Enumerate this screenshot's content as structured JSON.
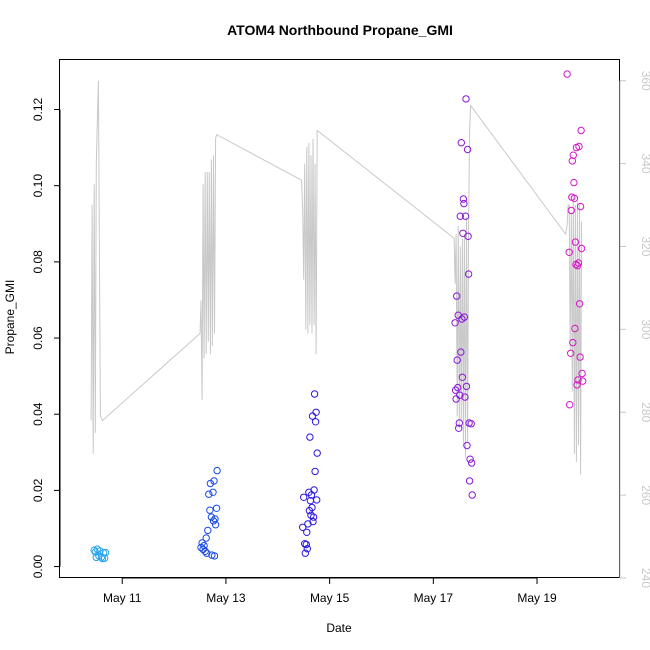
{
  "chart_data": {
    "type": "scatter",
    "title": "ATOM4 Northbound Propane_GMI",
    "xlabel": "Date",
    "ylabel": "Propane_GMI",
    "x_unit": "day of May",
    "xlim": [
      9.8,
      20.6
    ],
    "ylim": [
      -0.003,
      0.133
    ],
    "x_ticks": [
      11,
      13,
      15,
      17,
      19
    ],
    "x_tick_labels": [
      "May 11",
      "May 13",
      "May 15",
      "May 17",
      "May 19"
    ],
    "y_ticks": [
      0.0,
      0.02,
      0.04,
      0.06,
      0.08,
      0.1,
      0.12
    ],
    "y_tick_labels": [
      "0.00",
      "0.02",
      "0.04",
      "0.06",
      "0.08",
      "0.10",
      "0.12"
    ],
    "secondary_axis": {
      "label": "",
      "ylim": [
        240,
        365
      ],
      "ticks": [
        240,
        260,
        280,
        300,
        320,
        340,
        360
      ],
      "tick_labels": [
        "240",
        "260",
        "280",
        "300",
        "320",
        "340",
        "360"
      ],
      "color": "#c8c8c8"
    },
    "series": [
      {
        "name": "Propane_GMI points",
        "color_note": "colored by date, light blue to magenta",
        "points": [
          {
            "x": 10.46,
            "y": 0.0043,
            "color": "#29a3f0"
          },
          {
            "x": 10.48,
            "y": 0.0038,
            "color": "#29a3f0"
          },
          {
            "x": 10.5,
            "y": 0.0024,
            "color": "#29a3f0"
          },
          {
            "x": 10.52,
            "y": 0.0046,
            "color": "#29a3f0"
          },
          {
            "x": 10.55,
            "y": 0.0028,
            "color": "#29a3f0"
          },
          {
            "x": 10.57,
            "y": 0.0041,
            "color": "#29a3f0"
          },
          {
            "x": 10.6,
            "y": 0.0025,
            "color": "#29a3f0"
          },
          {
            "x": 10.62,
            "y": 0.0021,
            "color": "#29a3f0"
          },
          {
            "x": 10.64,
            "y": 0.0036,
            "color": "#29a3f0"
          },
          {
            "x": 10.66,
            "y": 0.0022,
            "color": "#29a3f0"
          },
          {
            "x": 10.68,
            "y": 0.0037,
            "color": "#29a3f0"
          },
          {
            "x": 12.52,
            "y": 0.005,
            "color": "#1a4ae8"
          },
          {
            "x": 12.54,
            "y": 0.0062,
            "color": "#1a4ae8"
          },
          {
            "x": 12.56,
            "y": 0.0045,
            "color": "#1a4ae8"
          },
          {
            "x": 12.58,
            "y": 0.0055,
            "color": "#1a4ae8"
          },
          {
            "x": 12.6,
            "y": 0.004,
            "color": "#1a4ae8"
          },
          {
            "x": 12.62,
            "y": 0.0075,
            "color": "#1a4ae8"
          },
          {
            "x": 12.63,
            "y": 0.0035,
            "color": "#1a4ae8"
          },
          {
            "x": 12.65,
            "y": 0.0095,
            "color": "#1a4ae8"
          },
          {
            "x": 12.67,
            "y": 0.019,
            "color": "#1a4ae8"
          },
          {
            "x": 12.69,
            "y": 0.0148,
            "color": "#1a4ae8"
          },
          {
            "x": 12.7,
            "y": 0.0218,
            "color": "#1a4ae8"
          },
          {
            "x": 12.72,
            "y": 0.013,
            "color": "#1a4ae8"
          },
          {
            "x": 12.73,
            "y": 0.003,
            "color": "#1a4ae8"
          },
          {
            "x": 12.75,
            "y": 0.0195,
            "color": "#1a4ae8"
          },
          {
            "x": 12.76,
            "y": 0.012,
            "color": "#1a4ae8"
          },
          {
            "x": 12.77,
            "y": 0.0225,
            "color": "#1a4ae8"
          },
          {
            "x": 12.78,
            "y": 0.0028,
            "color": "#1a4ae8"
          },
          {
            "x": 12.79,
            "y": 0.0125,
            "color": "#1a4ae8"
          },
          {
            "x": 12.8,
            "y": 0.011,
            "color": "#1a4ae8"
          },
          {
            "x": 12.82,
            "y": 0.0153,
            "color": "#1a4ae8"
          },
          {
            "x": 12.83,
            "y": 0.0252,
            "color": "#1a4ae8"
          },
          {
            "x": 14.48,
            "y": 0.0103,
            "color": "#2a18e0"
          },
          {
            "x": 14.5,
            "y": 0.0182,
            "color": "#2a18e0"
          },
          {
            "x": 14.52,
            "y": 0.006,
            "color": "#2a18e0"
          },
          {
            "x": 14.53,
            "y": 0.0035,
            "color": "#2a18e0"
          },
          {
            "x": 14.55,
            "y": 0.0058,
            "color": "#2a18e0"
          },
          {
            "x": 14.56,
            "y": 0.009,
            "color": "#2a18e0"
          },
          {
            "x": 14.57,
            "y": 0.0047,
            "color": "#2a18e0"
          },
          {
            "x": 14.58,
            "y": 0.0112,
            "color": "#2a18e0"
          },
          {
            "x": 14.6,
            "y": 0.0195,
            "color": "#2a18e0"
          },
          {
            "x": 14.61,
            "y": 0.0147,
            "color": "#2a18e0"
          },
          {
            "x": 14.62,
            "y": 0.034,
            "color": "#2a18e0"
          },
          {
            "x": 14.63,
            "y": 0.0173,
            "color": "#2a18e0"
          },
          {
            "x": 14.64,
            "y": 0.0135,
            "color": "#2a18e0"
          },
          {
            "x": 14.65,
            "y": 0.0188,
            "color": "#2a18e0"
          },
          {
            "x": 14.66,
            "y": 0.0155,
            "color": "#2a18e0"
          },
          {
            "x": 14.67,
            "y": 0.0395,
            "color": "#2a18e0"
          },
          {
            "x": 14.68,
            "y": 0.0118,
            "color": "#2a18e0"
          },
          {
            "x": 14.69,
            "y": 0.013,
            "color": "#2a18e0"
          },
          {
            "x": 14.7,
            "y": 0.0201,
            "color": "#2a18e0"
          },
          {
            "x": 14.71,
            "y": 0.0453,
            "color": "#2a18e0"
          },
          {
            "x": 14.72,
            "y": 0.025,
            "color": "#2a18e0"
          },
          {
            "x": 14.73,
            "y": 0.038,
            "color": "#2a18e0"
          },
          {
            "x": 14.74,
            "y": 0.0405,
            "color": "#2a18e0"
          },
          {
            "x": 14.75,
            "y": 0.0175,
            "color": "#2a18e0"
          },
          {
            "x": 14.76,
            "y": 0.0298,
            "color": "#2a18e0"
          },
          {
            "x": 17.42,
            "y": 0.064,
            "color": "#8a18d8"
          },
          {
            "x": 17.43,
            "y": 0.0463,
            "color": "#8a18d8"
          },
          {
            "x": 17.44,
            "y": 0.044,
            "color": "#8a18d8"
          },
          {
            "x": 17.45,
            "y": 0.071,
            "color": "#8a18d8"
          },
          {
            "x": 17.46,
            "y": 0.0542,
            "color": "#8a18d8"
          },
          {
            "x": 17.47,
            "y": 0.047,
            "color": "#8a18d8"
          },
          {
            "x": 17.48,
            "y": 0.066,
            "color": "#8a18d8"
          },
          {
            "x": 17.49,
            "y": 0.0363,
            "color": "#8a18d8"
          },
          {
            "x": 17.5,
            "y": 0.0377,
            "color": "#8a18d8"
          },
          {
            "x": 17.51,
            "y": 0.045,
            "color": "#8a18d8"
          },
          {
            "x": 17.52,
            "y": 0.092,
            "color": "#8a18d8"
          },
          {
            "x": 17.53,
            "y": 0.0563,
            "color": "#8a18d8"
          },
          {
            "x": 17.54,
            "y": 0.1113,
            "color": "#8a18d8"
          },
          {
            "x": 17.55,
            "y": 0.065,
            "color": "#8a18d8"
          },
          {
            "x": 17.56,
            "y": 0.0497,
            "color": "#8a18d8"
          },
          {
            "x": 17.57,
            "y": 0.0875,
            "color": "#8a18d8"
          },
          {
            "x": 17.58,
            "y": 0.0965,
            "color": "#8a18d8"
          },
          {
            "x": 17.59,
            "y": 0.0953,
            "color": "#8a18d8"
          },
          {
            "x": 17.6,
            "y": 0.0655,
            "color": "#8a18d8"
          },
          {
            "x": 17.61,
            "y": 0.0445,
            "color": "#8a18d8"
          },
          {
            "x": 17.62,
            "y": 0.092,
            "color": "#8a18d8"
          },
          {
            "x": 17.63,
            "y": 0.1228,
            "color": "#8a18d8"
          },
          {
            "x": 17.64,
            "y": 0.0473,
            "color": "#8a18d8"
          },
          {
            "x": 17.65,
            "y": 0.0318,
            "color": "#8a18d8"
          },
          {
            "x": 17.66,
            "y": 0.1095,
            "color": "#8a18d8"
          },
          {
            "x": 17.67,
            "y": 0.0867,
            "color": "#8a18d8"
          },
          {
            "x": 17.68,
            "y": 0.0768,
            "color": "#8a18d8"
          },
          {
            "x": 17.69,
            "y": 0.0377,
            "color": "#8a18d8"
          },
          {
            "x": 17.7,
            "y": 0.0225,
            "color": "#8a18d8"
          },
          {
            "x": 17.71,
            "y": 0.0282,
            "color": "#8a18d8"
          },
          {
            "x": 17.73,
            "y": 0.0375,
            "color": "#8a18d8"
          },
          {
            "x": 17.74,
            "y": 0.0272,
            "color": "#8a18d8"
          },
          {
            "x": 17.75,
            "y": 0.0188,
            "color": "#8a18d8"
          },
          {
            "x": 19.58,
            "y": 0.1293,
            "color": "#d618c8"
          },
          {
            "x": 19.62,
            "y": 0.0825,
            "color": "#d618c8"
          },
          {
            "x": 19.63,
            "y": 0.0425,
            "color": "#d618c8"
          },
          {
            "x": 19.65,
            "y": 0.056,
            "color": "#d618c8"
          },
          {
            "x": 19.66,
            "y": 0.0935,
            "color": "#d618c8"
          },
          {
            "x": 19.67,
            "y": 0.097,
            "color": "#d618c8"
          },
          {
            "x": 19.68,
            "y": 0.1065,
            "color": "#d618c8"
          },
          {
            "x": 19.69,
            "y": 0.0588,
            "color": "#d618c8"
          },
          {
            "x": 19.7,
            "y": 0.108,
            "color": "#d618c8"
          },
          {
            "x": 19.71,
            "y": 0.1008,
            "color": "#d618c8"
          },
          {
            "x": 19.72,
            "y": 0.0967,
            "color": "#d618c8"
          },
          {
            "x": 19.73,
            "y": 0.0625,
            "color": "#d618c8"
          },
          {
            "x": 19.74,
            "y": 0.0852,
            "color": "#d618c8"
          },
          {
            "x": 19.75,
            "y": 0.0793,
            "color": "#d618c8"
          },
          {
            "x": 19.76,
            "y": 0.11,
            "color": "#d618c8"
          },
          {
            "x": 19.77,
            "y": 0.0477,
            "color": "#d618c8"
          },
          {
            "x": 19.78,
            "y": 0.079,
            "color": "#d618c8"
          },
          {
            "x": 19.79,
            "y": 0.049,
            "color": "#d618c8"
          },
          {
            "x": 19.8,
            "y": 0.0797,
            "color": "#d618c8"
          },
          {
            "x": 19.81,
            "y": 0.1103,
            "color": "#d618c8"
          },
          {
            "x": 19.82,
            "y": 0.069,
            "color": "#d618c8"
          },
          {
            "x": 19.83,
            "y": 0.055,
            "color": "#d618c8"
          },
          {
            "x": 19.84,
            "y": 0.0945,
            "color": "#d618c8"
          },
          {
            "x": 19.85,
            "y": 0.1145,
            "color": "#d618c8"
          },
          {
            "x": 19.86,
            "y": 0.0835,
            "color": "#d618c8"
          },
          {
            "x": 19.87,
            "y": 0.0507,
            "color": "#d618c8"
          },
          {
            "x": 19.88,
            "y": 0.0487,
            "color": "#d618c8"
          }
        ]
      },
      {
        "name": "secondary trace (right axis)",
        "color": "#c8c8c8",
        "axis": "right",
        "points": [
          [
            10.4,
            278
          ],
          [
            10.42,
            330
          ],
          [
            10.44,
            270
          ],
          [
            10.46,
            335
          ],
          [
            10.48,
            275
          ],
          [
            10.5,
            340
          ],
          [
            10.52,
            350
          ],
          [
            10.54,
            360
          ],
          [
            10.58,
            279
          ],
          [
            10.62,
            278
          ],
          [
            12.5,
            299
          ],
          [
            12.52,
            307
          ],
          [
            12.54,
            283
          ],
          [
            12.56,
            335
          ],
          [
            12.58,
            293
          ],
          [
            12.6,
            338
          ],
          [
            12.62,
            294
          ],
          [
            12.64,
            338
          ],
          [
            12.66,
            297
          ],
          [
            12.68,
            338
          ],
          [
            12.7,
            294
          ],
          [
            12.72,
            341
          ],
          [
            12.74,
            296
          ],
          [
            12.76,
            342
          ],
          [
            12.78,
            299
          ],
          [
            12.8,
            346
          ],
          [
            12.82,
            347
          ],
          [
            14.46,
            336
          ],
          [
            14.48,
            329
          ],
          [
            14.5,
            312
          ],
          [
            14.52,
            340
          ],
          [
            14.54,
            300
          ],
          [
            14.56,
            344
          ],
          [
            14.58,
            299
          ],
          [
            14.6,
            345
          ],
          [
            14.62,
            301
          ],
          [
            14.64,
            342
          ],
          [
            14.66,
            299
          ],
          [
            14.68,
            346
          ],
          [
            14.7,
            301
          ],
          [
            14.72,
            340
          ],
          [
            14.74,
            294
          ],
          [
            14.76,
            348
          ],
          [
            17.4,
            322
          ],
          [
            17.42,
            311
          ],
          [
            17.44,
            323
          ],
          [
            17.46,
            279
          ],
          [
            17.48,
            325
          ],
          [
            17.5,
            276
          ],
          [
            17.52,
            320
          ],
          [
            17.54,
            278
          ],
          [
            17.56,
            322
          ],
          [
            17.58,
            272
          ],
          [
            17.6,
            323
          ],
          [
            17.62,
            269
          ],
          [
            17.64,
            327
          ],
          [
            17.66,
            273
          ],
          [
            17.68,
            325
          ],
          [
            17.7,
            348
          ],
          [
            17.72,
            354
          ],
          [
            19.55,
            323
          ],
          [
            19.58,
            325
          ],
          [
            19.6,
            330
          ],
          [
            19.62,
            330
          ],
          [
            19.64,
            295
          ],
          [
            19.66,
            328
          ],
          [
            19.68,
            285
          ],
          [
            19.7,
            332
          ],
          [
            19.72,
            270
          ],
          [
            19.74,
            330
          ],
          [
            19.76,
            268
          ],
          [
            19.78,
            331
          ],
          [
            19.8,
            272
          ],
          [
            19.82,
            330
          ],
          [
            19.84,
            265
          ],
          [
            19.86,
            326
          ]
        ]
      }
    ]
  }
}
